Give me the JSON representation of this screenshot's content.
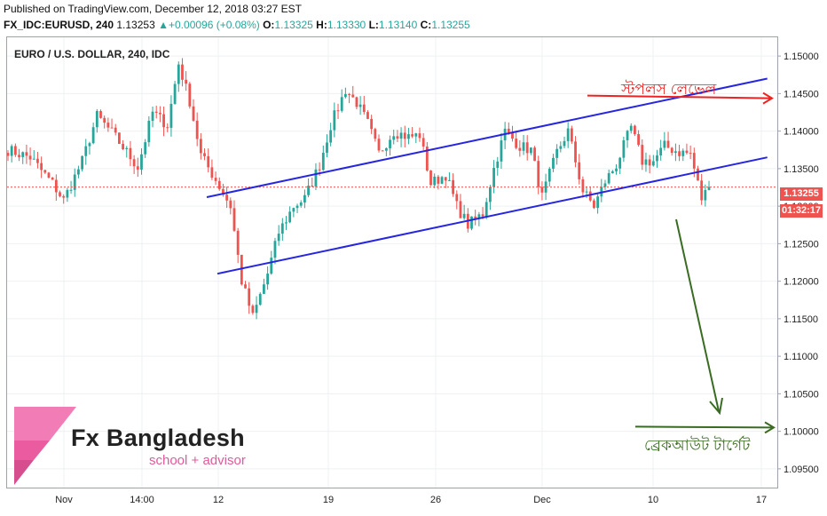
{
  "header": {
    "published": "Published on TradingView.com, December 12, 2018 03:27 EST",
    "symbol": "FX_IDC:EURUSD, 240",
    "last": "1.13253",
    "change": "+0.00096 (+0.08%)",
    "o_label": "O:",
    "o_value": "1.13325",
    "h_label": "H:",
    "h_value": "1.13330",
    "l_label": "L:",
    "l_value": "1.13140",
    "c_label": "C:",
    "c_value": "1.13255"
  },
  "chart_title": "EURO / U.S. DOLLAR, 240, IDC",
  "current_price_label": "1.13255",
  "countdown_label": "01:32:17",
  "annotations": {
    "resistance_text": "স্টপলস লেভেল",
    "target_text": "ব্রেকআউট টার্গেট"
  },
  "logo": {
    "name": "Fx Bangladesh",
    "tagline": "school + advisor"
  },
  "colors": {
    "up": "#26a69a",
    "down": "#ef5350",
    "channel": "#2626e0",
    "stop_line": "#ee2222",
    "target": "#3a6b22",
    "brand": "#e0508f"
  },
  "chart_data": {
    "type": "candlestick",
    "ylim": [
      1.0925,
      1.1525
    ],
    "y_ticks": [
      "1.15000",
      "1.14500",
      "1.14000",
      "1.13500",
      "1.13000",
      "1.12500",
      "1.12000",
      "1.11500",
      "1.11000",
      "1.10500",
      "1.10000",
      "1.09500"
    ],
    "x_ticks": [
      "Nov",
      "14:00",
      "12",
      "19",
      "26",
      "Dec",
      "10",
      "17"
    ],
    "current_price": 1.13255,
    "candle_count": 190,
    "anchors": [
      [
        0,
        1.1375
      ],
      [
        6,
        1.1365
      ],
      [
        12,
        1.133
      ],
      [
        15,
        1.1308
      ],
      [
        20,
        1.136
      ],
      [
        24,
        1.142
      ],
      [
        28,
        1.1398
      ],
      [
        32,
        1.1372
      ],
      [
        35,
        1.1352
      ],
      [
        39,
        1.1425
      ],
      [
        43,
        1.1408
      ],
      [
        46,
        1.149
      ],
      [
        49,
        1.144
      ],
      [
        52,
        1.1368
      ],
      [
        56,
        1.1335
      ],
      [
        60,
        1.13
      ],
      [
        63,
        1.12
      ],
      [
        66,
        1.1152
      ],
      [
        70,
        1.121
      ],
      [
        73,
        1.1265
      ],
      [
        77,
        1.13
      ],
      [
        80,
        1.131
      ],
      [
        84,
        1.1355
      ],
      [
        87,
        1.1408
      ],
      [
        91,
        1.1455
      ],
      [
        94,
        1.1438
      ],
      [
        97,
        1.141
      ],
      [
        100,
        1.137
      ],
      [
        104,
        1.14
      ],
      [
        108,
        1.1392
      ],
      [
        111,
        1.1395
      ],
      [
        114,
        1.133
      ],
      [
        118,
        1.1342
      ],
      [
        121,
        1.13
      ],
      [
        124,
        1.1275
      ],
      [
        128,
        1.129
      ],
      [
        131,
        1.135
      ],
      [
        134,
        1.14
      ],
      [
        138,
        1.138
      ],
      [
        141,
        1.1375
      ],
      [
        144,
        1.1312
      ],
      [
        148,
        1.1372
      ],
      [
        151,
        1.14
      ],
      [
        155,
        1.132
      ],
      [
        158,
        1.13
      ],
      [
        161,
        1.1333
      ],
      [
        164,
        1.1355
      ],
      [
        168,
        1.1405
      ],
      [
        171,
        1.136
      ],
      [
        174,
        1.136
      ],
      [
        177,
        1.138
      ],
      [
        181,
        1.1372
      ],
      [
        184,
        1.137
      ],
      [
        187,
        1.131
      ],
      [
        189,
        1.1325
      ]
    ],
    "channel": {
      "upper_line": [
        [
          63,
          1.1312
        ],
        [
          199,
          1.147
        ]
      ],
      "lower_line": [
        [
          63,
          1.121
        ],
        [
          199,
          1.1365
        ]
      ]
    },
    "stop_level": 1.1445,
    "target_level": 1.1005
  }
}
